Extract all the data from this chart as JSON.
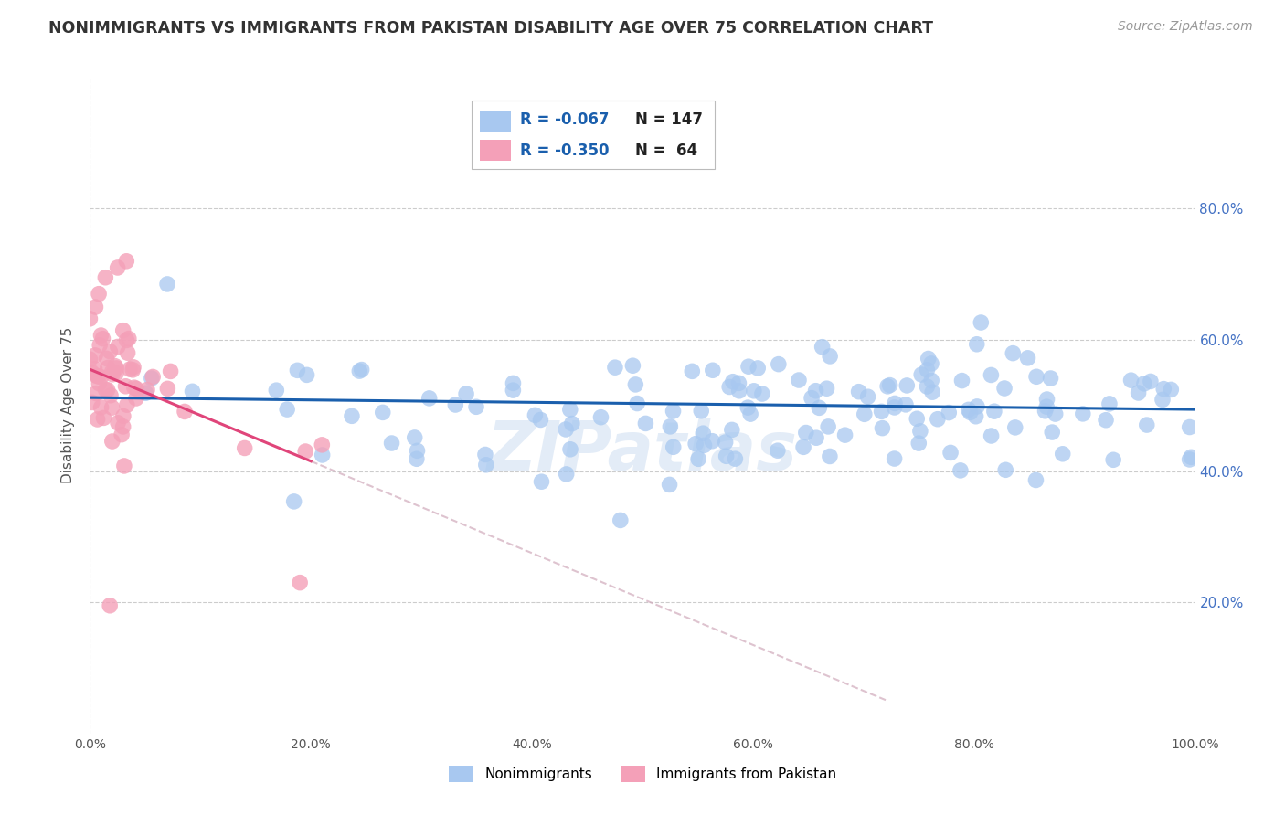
{
  "title": "NONIMMIGRANTS VS IMMIGRANTS FROM PAKISTAN DISABILITY AGE OVER 75 CORRELATION CHART",
  "source": "Source: ZipAtlas.com",
  "ylabel": "Disability Age Over 75",
  "blue_color": "#a8c8f0",
  "pink_color": "#f4a0b8",
  "blue_line_color": "#1a5fad",
  "pink_line_color": "#e0457a",
  "trend_ext_color": "#d0aabb",
  "background_color": "#ffffff",
  "grid_color": "#cccccc",
  "title_color": "#333333",
  "axis_label_color": "#555555",
  "right_tick_color": "#4472c4",
  "watermark_color": "#c8daf0",
  "legend_r1": "R = -0.067",
  "legend_n1": "N = 147",
  "legend_r2": "R = -0.350",
  "legend_n2": "N =  64",
  "ylim_min": 0.0,
  "ylim_max": 1.0,
  "xlim_min": 0.0,
  "xlim_max": 1.0,
  "ytick_vals": [
    0.2,
    0.4,
    0.6,
    0.8
  ],
  "xtick_vals": [
    0.0,
    0.2,
    0.4,
    0.6,
    0.8,
    1.0
  ],
  "blue_trend": [
    0.512,
    0.494
  ],
  "pink_trend_solid_end_x": 0.2,
  "pink_trend_start_y": 0.555,
  "pink_trend_slope": -0.7,
  "pink_trend_ext_end_x": 0.72
}
